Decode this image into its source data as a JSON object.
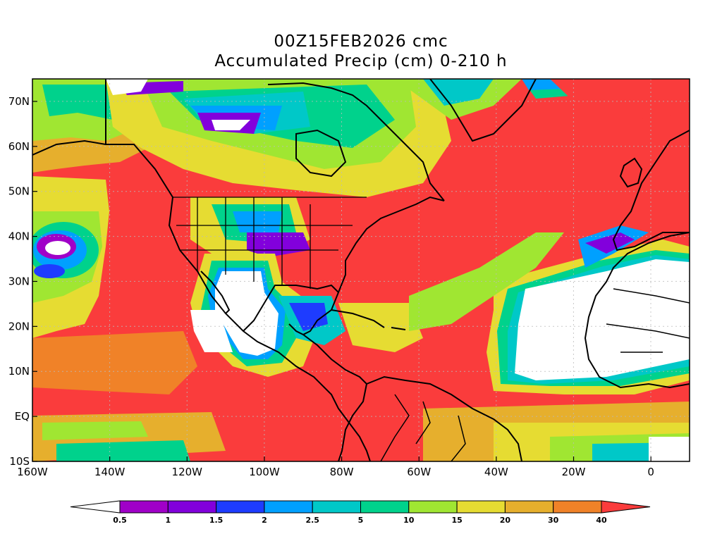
{
  "title": {
    "line1": "00Z15FEB2026 cmc",
    "line2": "Accumulated Precip (cm) 0-210 h"
  },
  "map": {
    "projection": "lat-lon",
    "lon_range": [
      -160,
      10
    ],
    "lat_range": [
      -10,
      75
    ],
    "gridlines": "dotted",
    "lon_ticks": [
      {
        "value": -160,
        "label": "160W"
      },
      {
        "value": -140,
        "label": "140W"
      },
      {
        "value": -120,
        "label": "120W"
      },
      {
        "value": -100,
        "label": "100W"
      },
      {
        "value": -80,
        "label": "80W"
      },
      {
        "value": -60,
        "label": "60W"
      },
      {
        "value": -40,
        "label": "40W"
      },
      {
        "value": -20,
        "label": "20W"
      },
      {
        "value": 0,
        "label": "0"
      }
    ],
    "lat_ticks": [
      {
        "value": 70,
        "label": "70N"
      },
      {
        "value": 60,
        "label": "60N"
      },
      {
        "value": 50,
        "label": "50N"
      },
      {
        "value": 40,
        "label": "40N"
      },
      {
        "value": 30,
        "label": "30N"
      },
      {
        "value": 20,
        "label": "20N"
      },
      {
        "value": 10,
        "label": "10N"
      },
      {
        "value": 0,
        "label": "EQ"
      },
      {
        "value": -10,
        "label": "10S"
      }
    ]
  },
  "colorbar": {
    "levels": [
      "0.5",
      "1",
      "1.5",
      "2",
      "2.5",
      "5",
      "10",
      "15",
      "20",
      "30",
      "40"
    ],
    "colors": [
      "#ffffff",
      "#a000c8",
      "#8200dc",
      "#1e3cff",
      "#00a0ff",
      "#00c8c8",
      "#00d28c",
      "#a0e632",
      "#e6dc32",
      "#e6af2d",
      "#f08228",
      "#fa3c3c"
    ]
  }
}
